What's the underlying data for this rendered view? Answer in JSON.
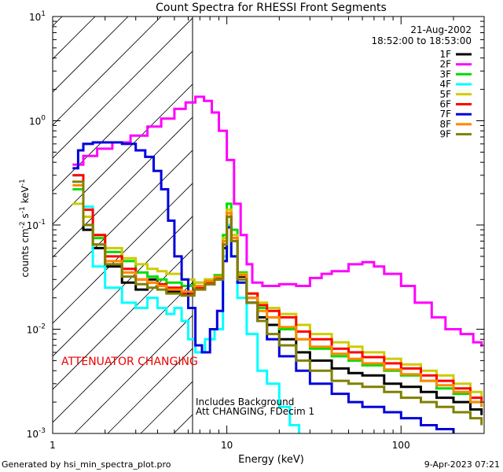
{
  "chart_data": {
    "type": "line",
    "title": "Count Spectra for RHESSI Front Segments",
    "xlabel": "Energy (keV)",
    "ylabel_parts": [
      "counts cm",
      "-2",
      " s",
      "-1",
      " keV",
      "-1"
    ],
    "xscale": "log",
    "yscale": "log",
    "xlim": [
      1,
      300
    ],
    "ylim": [
      0.001,
      10
    ],
    "x_ticks": [
      {
        "value": 1,
        "label": "1"
      },
      {
        "value": 10,
        "label": "10"
      },
      {
        "value": 100,
        "label": "100"
      }
    ],
    "y_ticks": [
      {
        "value": 0.001,
        "base": "10",
        "exp": "-3"
      },
      {
        "value": 0.01,
        "base": "10",
        "exp": "-2"
      },
      {
        "value": 0.1,
        "base": "10",
        "exp": "-1"
      },
      {
        "value": 1,
        "base": "10",
        "exp": "0"
      },
      {
        "value": 10,
        "base": "10",
        "exp": "1"
      }
    ],
    "date": "21-Aug-2002",
    "time_range": "18:52:00 to 18:53:00",
    "hatched_region_end_keV": 6,
    "annotations": {
      "attenuator": "ATTENUATOR CHANGING",
      "background": "Includes Background",
      "att_info": "Att CHANGING, FDecim 1"
    },
    "footer_left": "Generated by hsi_min_spectra_plot.pro",
    "footer_right": "9-Apr-2023 07:21",
    "series": [
      {
        "name": "1F",
        "color": "#000000",
        "points": [
          [
            1.3,
            0.26
          ],
          [
            1.5,
            0.09
          ],
          [
            1.7,
            0.06
          ],
          [
            2.0,
            0.04
          ],
          [
            2.5,
            0.028
          ],
          [
            3.0,
            0.024
          ],
          [
            3.5,
            0.03
          ],
          [
            4.0,
            0.026
          ],
          [
            4.5,
            0.023
          ],
          [
            5.5,
            0.022
          ],
          [
            6.5,
            0.025
          ],
          [
            7.5,
            0.027
          ],
          [
            8.5,
            0.03
          ],
          [
            9.5,
            0.06
          ],
          [
            10,
            0.12
          ],
          [
            10.6,
            0.07
          ],
          [
            11.5,
            0.032
          ],
          [
            13,
            0.02
          ],
          [
            15,
            0.013
          ],
          [
            17,
            0.011
          ],
          [
            20,
            0.008
          ],
          [
            25,
            0.006
          ],
          [
            30,
            0.005
          ],
          [
            40,
            0.0042
          ],
          [
            50,
            0.0038
          ],
          [
            60,
            0.0036
          ],
          [
            80,
            0.003
          ],
          [
            100,
            0.0028
          ],
          [
            130,
            0.0025
          ],
          [
            160,
            0.0022
          ],
          [
            200,
            0.002
          ],
          [
            250,
            0.0017
          ],
          [
            290,
            0.0015
          ]
        ]
      },
      {
        "name": "2F",
        "color": "#ff00ff",
        "points": [
          [
            1.3,
            0.38
          ],
          [
            1.5,
            0.46
          ],
          [
            1.8,
            0.54
          ],
          [
            2.2,
            0.62
          ],
          [
            2.8,
            0.72
          ],
          [
            3.5,
            0.88
          ],
          [
            4.2,
            1.05
          ],
          [
            5.0,
            1.3
          ],
          [
            5.8,
            1.5
          ],
          [
            6.6,
            1.7
          ],
          [
            7.4,
            1.55
          ],
          [
            8.2,
            1.2
          ],
          [
            9.0,
            0.8
          ],
          [
            10,
            0.42
          ],
          [
            11,
            0.16
          ],
          [
            12,
            0.08
          ],
          [
            13,
            0.042
          ],
          [
            14,
            0.028
          ],
          [
            16,
            0.026
          ],
          [
            20,
            0.027
          ],
          [
            25,
            0.026
          ],
          [
            30,
            0.031
          ],
          [
            35,
            0.034
          ],
          [
            40,
            0.036
          ],
          [
            50,
            0.042
          ],
          [
            60,
            0.044
          ],
          [
            70,
            0.04
          ],
          [
            80,
            0.034
          ],
          [
            100,
            0.026
          ],
          [
            120,
            0.018
          ],
          [
            150,
            0.013
          ],
          [
            180,
            0.01
          ],
          [
            220,
            0.009
          ],
          [
            260,
            0.0075
          ],
          [
            290,
            0.0068
          ]
        ]
      },
      {
        "name": "3F",
        "color": "#00dd00",
        "points": [
          [
            1.3,
            0.22
          ],
          [
            1.5,
            0.12
          ],
          [
            1.7,
            0.075
          ],
          [
            2.0,
            0.055
          ],
          [
            2.5,
            0.045
          ],
          [
            3.0,
            0.035
          ],
          [
            3.5,
            0.032
          ],
          [
            4.0,
            0.03
          ],
          [
            4.5,
            0.028
          ],
          [
            5.5,
            0.026
          ],
          [
            6.5,
            0.028
          ],
          [
            7.5,
            0.03
          ],
          [
            8.5,
            0.033
          ],
          [
            9.5,
            0.08
          ],
          [
            10,
            0.16
          ],
          [
            10.6,
            0.09
          ],
          [
            11.5,
            0.035
          ],
          [
            13,
            0.022
          ],
          [
            15,
            0.016
          ],
          [
            17,
            0.013
          ],
          [
            20,
            0.01
          ],
          [
            25,
            0.008
          ],
          [
            30,
            0.0065
          ],
          [
            40,
            0.0055
          ],
          [
            50,
            0.005
          ],
          [
            60,
            0.0045
          ],
          [
            80,
            0.004
          ],
          [
            100,
            0.0036
          ],
          [
            130,
            0.0032
          ],
          [
            160,
            0.0027
          ],
          [
            200,
            0.0024
          ],
          [
            250,
            0.002
          ],
          [
            290,
            0.0018
          ]
        ]
      },
      {
        "name": "4F",
        "color": "#00ffff",
        "points": [
          [
            1.3,
            0.3
          ],
          [
            1.5,
            0.15
          ],
          [
            1.7,
            0.04
          ],
          [
            2.0,
            0.025
          ],
          [
            2.5,
            0.018
          ],
          [
            3.0,
            0.016
          ],
          [
            3.5,
            0.02
          ],
          [
            4.0,
            0.016
          ],
          [
            4.5,
            0.014
          ],
          [
            5.0,
            0.016
          ],
          [
            5.5,
            0.012
          ],
          [
            6.0,
            0.008
          ],
          [
            6.6,
            0.006
          ],
          [
            7.5,
            0.008
          ],
          [
            8.5,
            0.01
          ],
          [
            9.5,
            0.05
          ],
          [
            10,
            0.1
          ],
          [
            10.6,
            0.05
          ],
          [
            11.5,
            0.02
          ],
          [
            13,
            0.009
          ],
          [
            15,
            0.004
          ],
          [
            17,
            0.003
          ],
          [
            20,
            0.0018
          ],
          [
            23,
            0.0012
          ],
          [
            26,
            0.001
          ]
        ]
      },
      {
        "name": "5F",
        "color": "#cccc00",
        "points": [
          [
            1.3,
            0.16
          ],
          [
            1.5,
            0.12
          ],
          [
            1.7,
            0.08
          ],
          [
            2.0,
            0.06
          ],
          [
            2.5,
            0.048
          ],
          [
            3.0,
            0.042
          ],
          [
            3.5,
            0.038
          ],
          [
            4.0,
            0.036
          ],
          [
            4.5,
            0.034
          ],
          [
            5.5,
            0.03
          ],
          [
            6.5,
            0.028
          ],
          [
            7.5,
            0.03
          ],
          [
            8.5,
            0.032
          ],
          [
            9.5,
            0.075
          ],
          [
            10,
            0.14
          ],
          [
            10.6,
            0.08
          ],
          [
            11.5,
            0.034
          ],
          [
            13,
            0.022
          ],
          [
            15,
            0.018
          ],
          [
            17,
            0.016
          ],
          [
            20,
            0.014
          ],
          [
            25,
            0.011
          ],
          [
            30,
            0.009
          ],
          [
            40,
            0.0075
          ],
          [
            50,
            0.0068
          ],
          [
            60,
            0.006
          ],
          [
            80,
            0.0052
          ],
          [
            100,
            0.0046
          ],
          [
            130,
            0.004
          ],
          [
            160,
            0.0036
          ],
          [
            200,
            0.003
          ],
          [
            250,
            0.0025
          ],
          [
            290,
            0.0022
          ]
        ]
      },
      {
        "name": "6F",
        "color": "#ff0000",
        "points": [
          [
            1.3,
            0.3
          ],
          [
            1.5,
            0.14
          ],
          [
            1.7,
            0.08
          ],
          [
            2.0,
            0.05
          ],
          [
            2.5,
            0.038
          ],
          [
            3.0,
            0.03
          ],
          [
            3.5,
            0.028
          ],
          [
            4.0,
            0.027
          ],
          [
            4.5,
            0.025
          ],
          [
            5.5,
            0.022
          ],
          [
            6.5,
            0.025
          ],
          [
            7.5,
            0.028
          ],
          [
            8.5,
            0.031
          ],
          [
            9.5,
            0.07
          ],
          [
            10,
            0.13
          ],
          [
            10.6,
            0.075
          ],
          [
            11.5,
            0.033
          ],
          [
            13,
            0.022
          ],
          [
            15,
            0.017
          ],
          [
            17,
            0.015
          ],
          [
            20,
            0.013
          ],
          [
            25,
            0.0095
          ],
          [
            30,
            0.008
          ],
          [
            40,
            0.0065
          ],
          [
            50,
            0.006
          ],
          [
            60,
            0.0054
          ],
          [
            80,
            0.0047
          ],
          [
            100,
            0.0042
          ],
          [
            130,
            0.0036
          ],
          [
            160,
            0.0032
          ],
          [
            200,
            0.0027
          ],
          [
            250,
            0.0022
          ],
          [
            290,
            0.002
          ]
        ]
      },
      {
        "name": "7F",
        "color": "#0000dd",
        "points": [
          [
            1.3,
            0.35
          ],
          [
            1.4,
            0.52
          ],
          [
            1.5,
            0.6
          ],
          [
            1.7,
            0.62
          ],
          [
            2.0,
            0.62
          ],
          [
            2.5,
            0.6
          ],
          [
            3.0,
            0.52
          ],
          [
            3.4,
            0.45
          ],
          [
            3.8,
            0.33
          ],
          [
            4.2,
            0.22
          ],
          [
            4.6,
            0.11
          ],
          [
            5.0,
            0.05
          ],
          [
            5.5,
            0.03
          ],
          [
            6.0,
            0.016
          ],
          [
            6.6,
            0.007
          ],
          [
            7.2,
            0.006
          ],
          [
            8.0,
            0.01
          ],
          [
            8.8,
            0.015
          ],
          [
            9.5,
            0.045
          ],
          [
            10,
            0.095
          ],
          [
            10.6,
            0.05
          ],
          [
            11.5,
            0.028
          ],
          [
            13,
            0.018
          ],
          [
            15,
            0.012
          ],
          [
            17,
            0.008
          ],
          [
            20,
            0.0055
          ],
          [
            25,
            0.004
          ],
          [
            30,
            0.003
          ],
          [
            40,
            0.0024
          ],
          [
            50,
            0.002
          ],
          [
            60,
            0.0018
          ],
          [
            80,
            0.0016
          ],
          [
            100,
            0.0014
          ],
          [
            130,
            0.0012
          ],
          [
            160,
            0.0011
          ],
          [
            200,
            0.001
          ]
        ]
      },
      {
        "name": "8F",
        "color": "#ff8800",
        "points": [
          [
            1.3,
            0.24
          ],
          [
            1.5,
            0.1
          ],
          [
            1.7,
            0.065
          ],
          [
            2.0,
            0.045
          ],
          [
            2.5,
            0.035
          ],
          [
            3.0,
            0.03
          ],
          [
            3.5,
            0.028
          ],
          [
            4.0,
            0.026
          ],
          [
            4.5,
            0.024
          ],
          [
            5.5,
            0.023
          ],
          [
            6.5,
            0.026
          ],
          [
            7.5,
            0.029
          ],
          [
            8.5,
            0.032
          ],
          [
            9.5,
            0.07
          ],
          [
            10,
            0.13
          ],
          [
            10.6,
            0.075
          ],
          [
            11.5,
            0.033
          ],
          [
            13,
            0.02
          ],
          [
            15,
            0.015
          ],
          [
            17,
            0.013
          ],
          [
            20,
            0.0105
          ],
          [
            25,
            0.008
          ],
          [
            30,
            0.0068
          ],
          [
            40,
            0.0058
          ],
          [
            50,
            0.0052
          ],
          [
            60,
            0.0047
          ],
          [
            80,
            0.0041
          ],
          [
            100,
            0.0037
          ],
          [
            130,
            0.0032
          ],
          [
            160,
            0.0029
          ],
          [
            200,
            0.0025
          ],
          [
            250,
            0.002
          ],
          [
            290,
            0.0018
          ]
        ]
      },
      {
        "name": "9F",
        "color": "#808000",
        "points": [
          [
            1.3,
            0.26
          ],
          [
            1.5,
            0.1
          ],
          [
            1.7,
            0.065
          ],
          [
            2.0,
            0.042
          ],
          [
            2.5,
            0.032
          ],
          [
            3.0,
            0.027
          ],
          [
            3.5,
            0.025
          ],
          [
            4.0,
            0.024
          ],
          [
            4.5,
            0.022
          ],
          [
            5.5,
            0.021
          ],
          [
            6.5,
            0.024
          ],
          [
            7.5,
            0.027
          ],
          [
            8.5,
            0.03
          ],
          [
            9.5,
            0.065
          ],
          [
            10,
            0.12
          ],
          [
            10.6,
            0.07
          ],
          [
            11.5,
            0.03
          ],
          [
            13,
            0.018
          ],
          [
            15,
            0.012
          ],
          [
            17,
            0.009
          ],
          [
            20,
            0.007
          ],
          [
            25,
            0.005
          ],
          [
            30,
            0.004
          ],
          [
            40,
            0.0032
          ],
          [
            50,
            0.003
          ],
          [
            60,
            0.0028
          ],
          [
            80,
            0.0025
          ],
          [
            100,
            0.0022
          ],
          [
            130,
            0.002
          ],
          [
            160,
            0.0018
          ],
          [
            200,
            0.0016
          ],
          [
            250,
            0.0014
          ],
          [
            290,
            0.0012
          ]
        ]
      }
    ]
  }
}
